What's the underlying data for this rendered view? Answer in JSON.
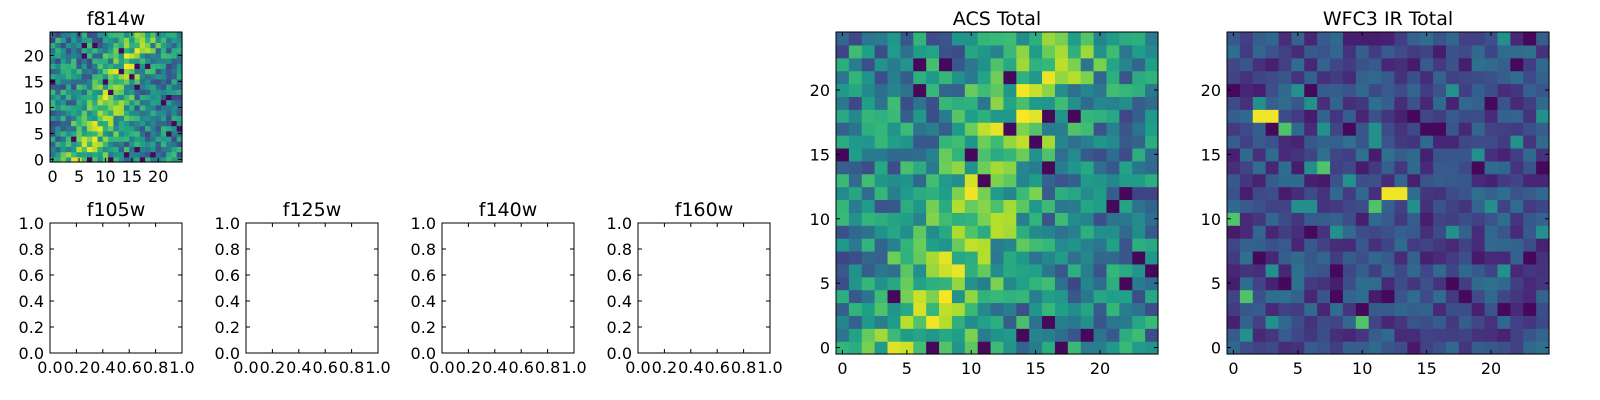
{
  "chart_data": [
    {
      "type": "heatmap",
      "title": "f814w",
      "xticks": [
        0,
        5,
        10,
        15,
        20
      ],
      "yticks": [
        0,
        5,
        10,
        15,
        20
      ],
      "xlim": [
        -0.5,
        24.5
      ],
      "ylim": [
        -0.5,
        24.5
      ],
      "colormap": "viridis",
      "grid": false,
      "pattern": "acs"
    },
    {
      "type": "heatmap",
      "title": "f105w",
      "xticks": [
        "0.0",
        "0.2",
        "0.4",
        "0.6",
        "0.8",
        "1.0"
      ],
      "yticks": [
        "0.0",
        "0.2",
        "0.4",
        "0.6",
        "0.8",
        "1.0"
      ],
      "xlim": [
        0,
        1
      ],
      "ylim": [
        0,
        1
      ],
      "empty": true
    },
    {
      "type": "heatmap",
      "title": "f125w",
      "xticks": [
        "0.0",
        "0.2",
        "0.4",
        "0.6",
        "0.8",
        "1.0"
      ],
      "yticks": [
        "0.0",
        "0.2",
        "0.4",
        "0.6",
        "0.8",
        "1.0"
      ],
      "xlim": [
        0,
        1
      ],
      "ylim": [
        0,
        1
      ],
      "empty": true
    },
    {
      "type": "heatmap",
      "title": "f140w",
      "xticks": [
        "0.0",
        "0.2",
        "0.4",
        "0.6",
        "0.8",
        "1.0"
      ],
      "yticks": [
        "0.0",
        "0.2",
        "0.4",
        "0.6",
        "0.8",
        "1.0"
      ],
      "xlim": [
        0,
        1
      ],
      "ylim": [
        0,
        1
      ],
      "empty": true
    },
    {
      "type": "heatmap",
      "title": "f160w",
      "xticks": [
        "0.0",
        "0.2",
        "0.4",
        "0.6",
        "0.8",
        "1.0"
      ],
      "yticks": [
        "0.0",
        "0.2",
        "0.4",
        "0.6",
        "0.8",
        "1.0"
      ],
      "xlim": [
        0,
        1
      ],
      "ylim": [
        0,
        1
      ],
      "empty": true
    },
    {
      "type": "heatmap",
      "title": "ACS Total",
      "xticks": [
        0,
        5,
        10,
        15,
        20
      ],
      "yticks": [
        0,
        5,
        10,
        15,
        20
      ],
      "xlim": [
        -0.5,
        24.5
      ],
      "ylim": [
        -0.5,
        24.5
      ],
      "colormap": "viridis",
      "grid": false,
      "pattern": "acs"
    },
    {
      "type": "heatmap",
      "title": "WFC3 IR Total",
      "xticks": [
        0,
        5,
        10,
        15,
        20
      ],
      "yticks": [
        0,
        5,
        10,
        15,
        20
      ],
      "xlim": [
        -0.5,
        24.5
      ],
      "ylim": [
        -0.5,
        24.5
      ],
      "colormap": "viridis",
      "grid": false,
      "pattern": "ir"
    }
  ]
}
